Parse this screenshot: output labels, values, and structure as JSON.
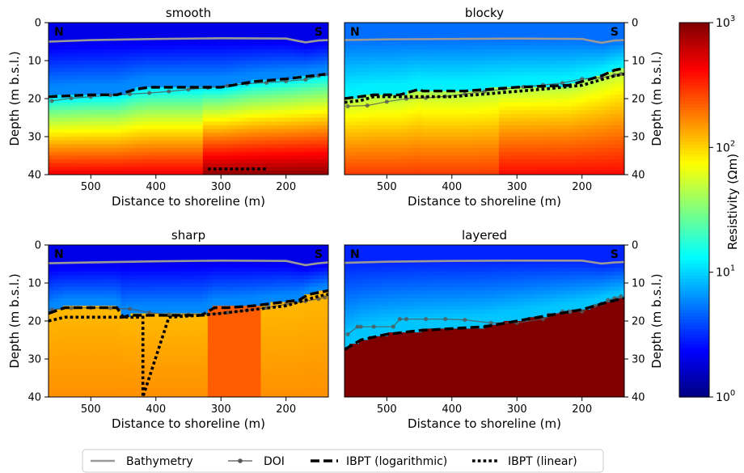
{
  "chart_data": {
    "type": "heatmap",
    "xlim": [
      565,
      135
    ],
    "ylim": [
      40,
      0
    ],
    "x_ticks": [
      500,
      400,
      300,
      200
    ],
    "y_ticks": [
      0,
      10,
      20,
      30,
      40
    ],
    "xlabel": "Distance to shoreline (m)",
    "ylabel": "Depth (m b.s.l.)",
    "corner_labels": {
      "left": "N",
      "right": "S"
    },
    "panels": [
      {
        "title": "smooth",
        "bathymetry": {
          "x": [
            565,
            500,
            400,
            300,
            200,
            170,
            150,
            135
          ],
          "y": [
            5,
            4.6,
            4.3,
            4.1,
            4.2,
            5.2,
            4.7,
            4.6
          ]
        },
        "doi": {
          "x": [
            560,
            530,
            500,
            470,
            440,
            410,
            380,
            350,
            320,
            290,
            260,
            230,
            200,
            170,
            150,
            140
          ],
          "y": [
            20.6,
            19.9,
            19.5,
            19.1,
            18.8,
            18.5,
            18.1,
            17.6,
            17.1,
            16.6,
            16.1,
            15.8,
            15.4,
            15,
            14,
            13.6
          ]
        },
        "ibpt_log": {
          "x": [
            565,
            500,
            460,
            440,
            430,
            410,
            300,
            250,
            200,
            160,
            140
          ],
          "y": [
            19.5,
            19,
            19,
            18,
            17.5,
            17,
            17,
            15.5,
            14.8,
            14,
            13.6
          ]
        },
        "ibpt_linear": {
          "x": [
            320,
            230
          ],
          "y": [
            38.5,
            38.5
          ]
        },
        "resistivity_field": {
          "top_layer": [
            2,
            6
          ],
          "mid_range": [
            10,
            60
          ],
          "deep": [
            100,
            900
          ]
        }
      },
      {
        "title": "blocky",
        "bathymetry": {
          "x": [
            565,
            500,
            400,
            300,
            200,
            170,
            150,
            135
          ],
          "y": [
            4.6,
            4.4,
            4.3,
            4.2,
            4.3,
            5.3,
            4.7,
            4.6
          ]
        },
        "doi": {
          "x": [
            560,
            530,
            500,
            470,
            440,
            410,
            380,
            350,
            320,
            290,
            260,
            230,
            200,
            170,
            150,
            140
          ],
          "y": [
            22,
            21.8,
            20.8,
            20,
            19.8,
            19.4,
            18.8,
            18.1,
            17.5,
            16.9,
            16.4,
            15.9,
            14.8,
            14.5,
            13.8,
            13.5
          ]
        },
        "ibpt_log": {
          "x": [
            565,
            520,
            480,
            450,
            445,
            380,
            300,
            220,
            170,
            150,
            135
          ],
          "y": [
            20,
            19,
            19,
            17.5,
            18,
            18,
            17,
            16.5,
            14,
            12.5,
            12
          ]
        },
        "ibpt_linear": {
          "x": [
            565,
            540,
            520,
            470,
            400,
            330,
            260,
            200,
            150,
            135
          ],
          "y": [
            21,
            20.5,
            19.5,
            19.5,
            19.5,
            18.5,
            17.5,
            16.5,
            14,
            13.5
          ]
        },
        "resistivity_field": {
          "top_layer": [
            5,
            12
          ],
          "mid_range": [
            40,
            90
          ],
          "deep": [
            150,
            400
          ]
        }
      },
      {
        "title": "sharp",
        "bathymetry": {
          "x": [
            565,
            500,
            400,
            300,
            200,
            170,
            150,
            135
          ],
          "y": [
            4.8,
            4.6,
            4.3,
            4.1,
            4.2,
            5.3,
            4.8,
            4.6
          ]
        },
        "doi": {
          "x": [
            560,
            530,
            500,
            470,
            440,
            410,
            380,
            350,
            320,
            290,
            260,
            230,
            200,
            170,
            150,
            140
          ],
          "y": [
            17,
            16.6,
            16.5,
            16.6,
            16.8,
            17.8,
            18.3,
            18.3,
            18.2,
            17.8,
            17.2,
            16.5,
            15.6,
            14.8,
            14.2,
            13.8
          ]
        },
        "ibpt_log": {
          "x": [
            565,
            540,
            500,
            460,
            450,
            440,
            330,
            320,
            310,
            290,
            250,
            180,
            165,
            150,
            135
          ],
          "y": [
            18,
            16.5,
            16.5,
            16.5,
            19,
            18.5,
            18.5,
            17.5,
            16.5,
            16.5,
            16,
            14.5,
            13,
            12.5,
            12
          ]
        },
        "ibpt_linear": {
          "x": [
            565,
            540,
            500,
            440,
            420,
            420,
            380,
            330,
            300,
            250,
            200,
            170,
            150,
            135
          ],
          "y": [
            20,
            19,
            19,
            19,
            19,
            40,
            19,
            18.5,
            18,
            17,
            16,
            14.5,
            13.5,
            13
          ]
        },
        "resistivity_field": {
          "top_layer": [
            2,
            6
          ],
          "mid_range": [
            10,
            30
          ],
          "deep": [
            120,
            250
          ]
        }
      },
      {
        "title": "layered",
        "bathymetry": {
          "x": [
            565,
            500,
            400,
            300,
            200,
            170,
            150,
            135
          ],
          "y": [
            4.7,
            4.4,
            4.2,
            4.1,
            4.1,
            4.9,
            4.6,
            4.5
          ]
        },
        "doi": {
          "x": [
            560,
            545,
            540,
            520,
            490,
            480,
            470,
            440,
            410,
            380,
            340,
            300,
            260,
            230,
            220,
            200,
            180,
            170,
            160,
            150,
            140
          ],
          "y": [
            23.5,
            21.5,
            21.5,
            21.5,
            21.5,
            19.5,
            19.5,
            19.5,
            19.5,
            19.7,
            20.5,
            20.5,
            19.5,
            17.5,
            17.5,
            17.5,
            16,
            15.5,
            14.5,
            14,
            13.5
          ]
        },
        "ibpt_log": {
          "x": [
            565,
            540,
            500,
            450,
            400,
            350,
            300,
            250,
            200,
            160,
            135
          ],
          "y": [
            27.5,
            25,
            23.5,
            22.5,
            22,
            21.5,
            20,
            18.5,
            17,
            15,
            14
          ]
        },
        "ibpt_linear": {
          "x": [],
          "y": []
        },
        "resistivity_field": {
          "top_layer": [
            3,
            9
          ],
          "mid_range": [
            7,
            15
          ],
          "deep": [
            1000,
            1000
          ]
        }
      }
    ],
    "colorbar": {
      "label": "Resistivity (Ωm)",
      "scale": "log",
      "range": [
        1,
        1000
      ],
      "ticks": [
        {
          "base": "10",
          "exp": "0"
        },
        {
          "base": "10",
          "exp": "1"
        },
        {
          "base": "10",
          "exp": "2"
        },
        {
          "base": "10",
          "exp": "3"
        }
      ],
      "colormap": "jet"
    },
    "legend": {
      "position": "bottom-center",
      "entries": [
        {
          "label": "Bathymetry",
          "style": "solid-gray"
        },
        {
          "label": "DOI",
          "style": "line-dot"
        },
        {
          "label": "IBPT (logarithmic)",
          "style": "dashed"
        },
        {
          "label": "IBPT (linear)",
          "style": "dotted"
        }
      ]
    },
    "colors": {
      "bathymetry": "#999999",
      "doi": "#555555",
      "ibpt": "#000000"
    }
  }
}
